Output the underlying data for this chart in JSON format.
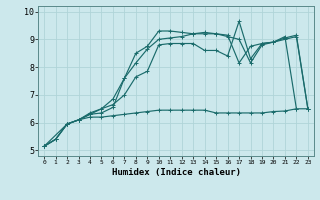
{
  "xlabel": "Humidex (Indice chaleur)",
  "xlim": [
    -0.5,
    23.5
  ],
  "ylim": [
    4.8,
    10.2
  ],
  "xticks": [
    0,
    1,
    2,
    3,
    4,
    5,
    6,
    7,
    8,
    9,
    10,
    11,
    12,
    13,
    14,
    15,
    16,
    17,
    18,
    19,
    20,
    21,
    22,
    23
  ],
  "yticks": [
    5,
    6,
    7,
    8,
    9,
    10
  ],
  "bg_color": "#cce8ec",
  "grid_color": "#b0d4d8",
  "line_color": "#1a6b6b",
  "lines": [
    {
      "x": [
        0,
        1,
        2,
        3,
        4,
        5,
        6,
        7,
        8,
        9,
        10,
        11,
        12,
        13,
        14,
        15,
        16,
        17,
        18,
        19,
        20,
        21,
        22,
        23
      ],
      "y": [
        5.15,
        5.4,
        5.95,
        6.1,
        6.2,
        6.2,
        6.25,
        6.3,
        6.35,
        6.4,
        6.45,
        6.45,
        6.45,
        6.45,
        6.45,
        6.35,
        6.35,
        6.35,
        6.35,
        6.35,
        6.4,
        6.42,
        6.5,
        6.5
      ]
    },
    {
      "x": [
        0,
        1,
        2,
        3,
        4,
        5,
        6,
        7,
        8,
        9,
        10,
        11,
        12,
        13,
        14,
        15,
        16,
        17,
        18,
        19,
        20,
        21,
        22,
        23
      ],
      "y": [
        5.15,
        5.4,
        5.95,
        6.1,
        6.3,
        6.35,
        6.55,
        7.6,
        8.5,
        8.75,
        9.3,
        9.3,
        9.25,
        9.2,
        9.2,
        9.2,
        9.1,
        9.0,
        8.15,
        8.8,
        8.9,
        9.0,
        9.1,
        6.5
      ]
    },
    {
      "x": [
        0,
        1,
        2,
        3,
        4,
        5,
        6,
        7,
        8,
        9,
        10,
        11,
        12,
        13,
        14,
        15,
        16,
        17,
        18,
        19,
        20,
        21,
        22,
        23
      ],
      "y": [
        5.15,
        5.4,
        5.95,
        6.1,
        6.3,
        6.5,
        6.85,
        7.6,
        8.15,
        8.65,
        9.0,
        9.05,
        9.1,
        9.2,
        9.25,
        9.2,
        9.15,
        8.15,
        8.75,
        8.85,
        8.9,
        9.05,
        9.15,
        6.5
      ]
    },
    {
      "x": [
        0,
        2,
        3,
        4,
        5,
        6,
        7,
        8,
        9,
        10,
        11,
        12,
        13,
        14,
        15,
        16,
        17,
        18,
        19,
        20,
        21,
        22
      ],
      "y": [
        5.15,
        5.95,
        6.1,
        6.35,
        6.5,
        6.65,
        7.0,
        7.65,
        7.85,
        8.8,
        8.85,
        8.85,
        8.85,
        8.6,
        8.6,
        8.4,
        9.65,
        8.3,
        8.85,
        8.9,
        9.1,
        6.5
      ]
    }
  ]
}
